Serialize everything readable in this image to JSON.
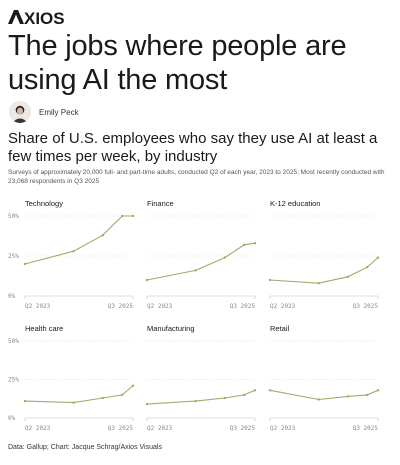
{
  "brand": {
    "name": "AXIOS",
    "logo_icon": "axios-logo"
  },
  "headline": "The jobs where people are using AI the most",
  "author": {
    "name": "Emily Peck",
    "avatar_icon": "author-avatar"
  },
  "chart_title": "Share of U.S. employees who say they use AI at least a few times per week, by industry",
  "subtitle": "Surveys of approximately 20,000 full- and part-time adults, conducted Q2 of each year, 2023 to 2025; Most recently conducted with 23,068 respondents in Q3 2025",
  "footer": "Data: Gallup; Chart: Jacque Schrag/Axios Visuals",
  "colors": {
    "series": "#a6a86a",
    "grid": "#d9d9d9",
    "text": "#1a1a1a"
  },
  "chart_data": [
    {
      "type": "line",
      "title": "Technology",
      "x": [
        "Q2 2023",
        "Q2 2024",
        "Q4 2024",
        "Q2 2025",
        "Q3 2025"
      ],
      "values": [
        20,
        28,
        38,
        50,
        50
      ],
      "ylim": [
        0,
        50
      ],
      "yticks": [
        "50%",
        "25%",
        "0%"
      ],
      "xtick_labels": [
        "Q2 2023",
        "Q3 2025"
      ],
      "grid": true
    },
    {
      "type": "line",
      "title": "Finance",
      "x": [
        "Q2 2023",
        "Q2 2024",
        "Q4 2024",
        "Q2 2025",
        "Q3 2025"
      ],
      "values": [
        10,
        16,
        24,
        32,
        33
      ],
      "ylim": [
        0,
        50
      ],
      "yticks": [
        "50%",
        "25%",
        "0%"
      ],
      "xtick_labels": [
        "Q2 2023",
        "Q3 2025"
      ],
      "grid": true
    },
    {
      "type": "line",
      "title": "K-12 education",
      "x": [
        "Q2 2023",
        "Q2 2024",
        "Q4 2024",
        "Q2 2025",
        "Q3 2025"
      ],
      "values": [
        10,
        8,
        12,
        18,
        24
      ],
      "ylim": [
        0,
        50
      ],
      "yticks": [
        "50%",
        "25%",
        "0%"
      ],
      "xtick_labels": [
        "Q2 2023",
        "Q3 2025"
      ],
      "grid": true
    },
    {
      "type": "line",
      "title": "Health care",
      "x": [
        "Q2 2023",
        "Q2 2024",
        "Q4 2024",
        "Q2 2025",
        "Q3 2025"
      ],
      "values": [
        11,
        10,
        13,
        15,
        21
      ],
      "ylim": [
        0,
        50
      ],
      "yticks": [
        "50%",
        "25%",
        "0%"
      ],
      "xtick_labels": [
        "Q2 2023",
        "Q3 2025"
      ],
      "grid": true
    },
    {
      "type": "line",
      "title": "Manufacturing",
      "x": [
        "Q2 2023",
        "Q2 2024",
        "Q4 2024",
        "Q2 2025",
        "Q3 2025"
      ],
      "values": [
        9,
        11,
        13,
        15,
        18
      ],
      "ylim": [
        0,
        50
      ],
      "yticks": [
        "50%",
        "25%",
        "0%"
      ],
      "xtick_labels": [
        "Q2 2023",
        "Q3 2025"
      ],
      "grid": true
    },
    {
      "type": "line",
      "title": "Retail",
      "x": [
        "Q2 2023",
        "Q2 2024",
        "Q4 2024",
        "Q2 2025",
        "Q3 2025"
      ],
      "values": [
        18,
        12,
        14,
        15,
        18
      ],
      "ylim": [
        0,
        50
      ],
      "yticks": [
        "50%",
        "25%",
        "0%"
      ],
      "xtick_labels": [
        "Q2 2023",
        "Q3 2025"
      ],
      "grid": true
    }
  ]
}
